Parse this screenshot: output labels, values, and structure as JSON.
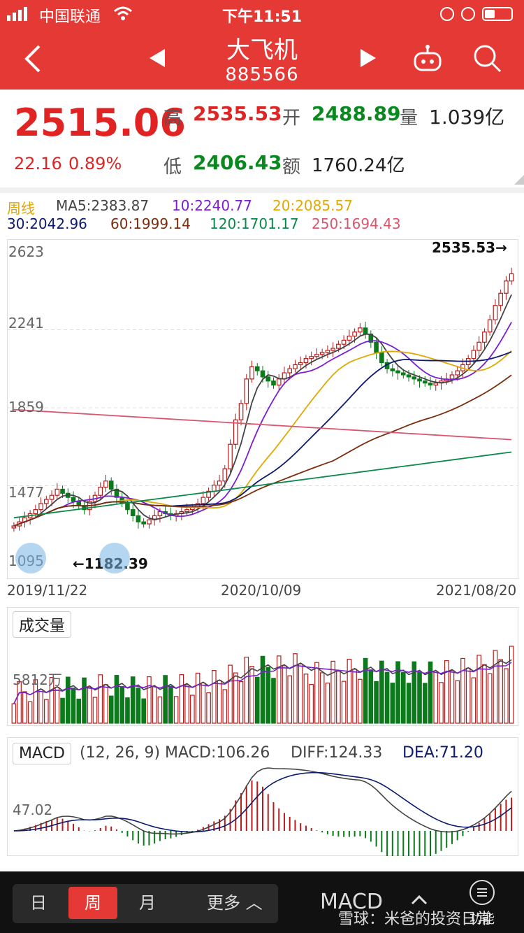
{
  "status_bar": {
    "carrier": "中国联通",
    "time": "下午11:51"
  },
  "header": {
    "title": "大飞机",
    "code": "885566"
  },
  "quote": {
    "price": "2515.06",
    "change": "22.16",
    "change_pct": "0.89%",
    "high_label": "高",
    "high": "2535.53",
    "open_label": "开",
    "open": "2488.89",
    "volume_label": "量",
    "volume": "1.039亿",
    "low_label": "低",
    "low": "2406.43",
    "amount_label": "额",
    "amount": "1760.24亿"
  },
  "ma_legend": {
    "period": "周线",
    "ma5": "MA5:2383.87",
    "ma10": "10:2240.77",
    "ma20": "20:2085.57",
    "ma30": "30:2042.96",
    "ma60": "60:1999.14",
    "ma120": "120:1701.17",
    "ma250": "250:1694.43"
  },
  "colors": {
    "up": "#b71c1c",
    "down": "#0a7a1a",
    "ma5": "#444444",
    "ma10": "#7b1fd0",
    "ma20": "#e0a800",
    "ma30": "#0d1a6e",
    "ma60": "#7a2e0e",
    "ma120": "#0a8a4a",
    "ma250": "#d9566e",
    "accent": "#e53935"
  },
  "chart_data": [
    {
      "type": "candlestick",
      "title": "",
      "y_ticks": [
        "2623",
        "2241",
        "1859",
        "1477",
        "1095"
      ],
      "ylim": [
        1095,
        2623
      ],
      "x_ticks": [
        "2019/11/22",
        "2020/10/09",
        "2021/08/20"
      ],
      "annotation_high": "2535.53→",
      "annotation_low": "←1182.39",
      "closes": [
        1280,
        1300,
        1320,
        1340,
        1360,
        1390,
        1410,
        1430,
        1460,
        1440,
        1420,
        1400,
        1380,
        1360,
        1400,
        1430,
        1470,
        1500,
        1460,
        1420,
        1390,
        1360,
        1330,
        1300,
        1290,
        1310,
        1330,
        1350,
        1340,
        1330,
        1340,
        1350,
        1360,
        1370,
        1390,
        1420,
        1450,
        1480,
        1500,
        1560,
        1680,
        1800,
        1880,
        2000,
        2060,
        2040,
        2010,
        1990,
        1970,
        2000,
        2030,
        2050,
        2070,
        2080,
        2100,
        2110,
        2120,
        2130,
        2140,
        2150,
        2170,
        2190,
        2210,
        2230,
        2250,
        2220,
        2180,
        2130,
        2080,
        2050,
        2040,
        2030,
        2020,
        2010,
        2000,
        1990,
        1980,
        1970,
        1980,
        1990,
        2000,
        2020,
        2040,
        2070,
        2100,
        2140,
        2180,
        2230,
        2290,
        2360,
        2420,
        2480,
        2515
      ]
    },
    {
      "type": "bar",
      "title": "成交量",
      "y_tick": "5812万"
    },
    {
      "type": "macd",
      "title": "MACD",
      "params": "(12, 26, 9)",
      "macd": "MACD:106.26",
      "diff": "DIFF:124.33",
      "dea": "DEA:71.20",
      "y_tick": "47.02"
    }
  ],
  "bottom_tabs": {
    "day": "日",
    "week": "周",
    "month": "月",
    "more": "更多",
    "indicator": "MACD",
    "func": "功能"
  },
  "watermark": "雪球：米爸的投资日常"
}
